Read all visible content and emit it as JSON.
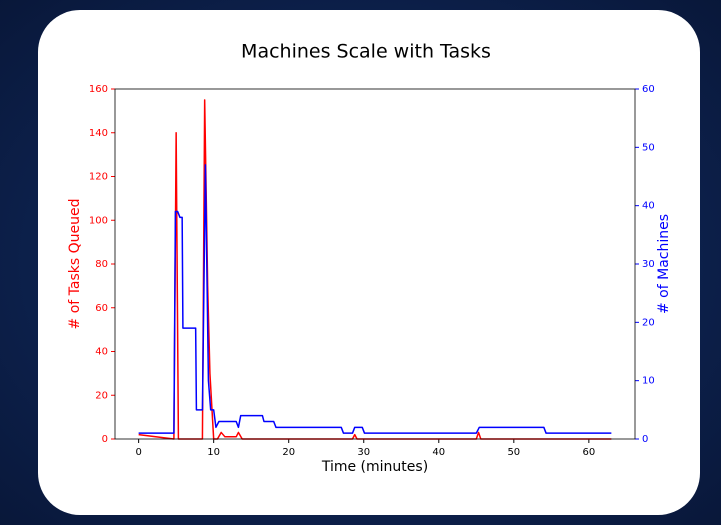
{
  "chart_data": {
    "type": "line",
    "title": "Machines Scale with Tasks",
    "x_label": "Time (minutes)",
    "y_label": "# of Tasks Queued",
    "y2_label": "# of Machines",
    "xlim": [
      -3.15,
      66.15
    ],
    "xticks": [
      0,
      10,
      20,
      30,
      40,
      50,
      60
    ],
    "ylim": [
      0,
      160
    ],
    "yticks": [
      0,
      20,
      40,
      60,
      80,
      100,
      120,
      140,
      160
    ],
    "y2lim": [
      0,
      60
    ],
    "y2ticks": [
      0,
      10,
      20,
      30,
      40,
      50,
      60
    ],
    "grid": false,
    "series": [
      {
        "name": "# of Tasks Queued",
        "color": "#ff0000",
        "axis": "y",
        "x": [
          0,
          4.7,
          5.0,
          5.3,
          8.5,
          8.8,
          9.2,
          9.5,
          10.0,
          10.5,
          11.0,
          11.5,
          13.0,
          13.3,
          13.8,
          28.5,
          28.8,
          29.1,
          45.0,
          45.3,
          45.6,
          63
        ],
        "values": [
          2,
          0,
          140,
          0,
          0,
          155,
          70,
          30,
          0,
          0,
          3,
          1,
          1,
          3,
          0,
          0,
          2,
          0,
          0,
          3,
          0,
          0
        ]
      },
      {
        "name": "# of Machines",
        "color": "#0000ff",
        "axis": "y2",
        "x": [
          0,
          4.7,
          4.9,
          5.2,
          5.5,
          5.8,
          5.9,
          7.6,
          7.7,
          8.5,
          8.9,
          9.3,
          9.6,
          10.0,
          10.3,
          10.7,
          13.0,
          13.3,
          13.6,
          16.5,
          16.7,
          18.0,
          18.3,
          27.0,
          27.3,
          28.5,
          28.8,
          29.8,
          30.1,
          45.0,
          45.4,
          54.0,
          54.3,
          63
        ],
        "values": [
          1,
          1,
          39,
          39,
          38,
          38,
          19,
          19,
          5,
          5,
          47,
          10,
          5,
          5,
          2,
          3,
          3,
          2,
          4,
          4,
          3,
          3,
          2,
          2,
          1,
          1,
          2,
          2,
          1,
          1,
          2,
          2,
          1,
          1
        ]
      }
    ]
  }
}
